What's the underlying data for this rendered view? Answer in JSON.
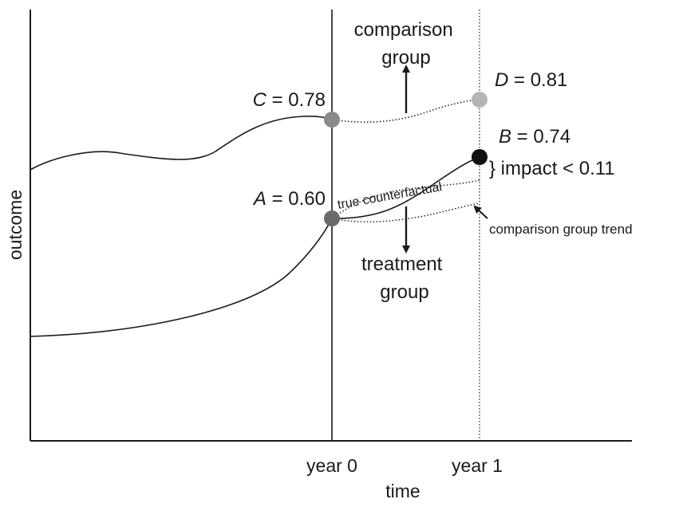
{
  "axes": {
    "y_label": "outcome",
    "x_label": "time",
    "x_ticks": [
      "year 0",
      "year 1"
    ]
  },
  "points": {
    "A": {
      "letter": "A",
      "value": " = 0.60",
      "color": "#6b6b6b"
    },
    "B": {
      "letter": "B",
      "value": " = 0.74",
      "color": "#111111"
    },
    "C": {
      "letter": "C",
      "value": " = 0.78",
      "color": "#8a8a8a"
    },
    "D": {
      "letter": "D",
      "value": " = 0.81",
      "color": "#b5b5b5"
    }
  },
  "labels": {
    "comparison_group": [
      "comparison",
      "group"
    ],
    "treatment_group": [
      "treatment",
      "group"
    ],
    "impact": "} impact < 0.11",
    "true_counterfactual": "true counterfactual",
    "comparison_group_trend": "comparison group trend"
  }
}
